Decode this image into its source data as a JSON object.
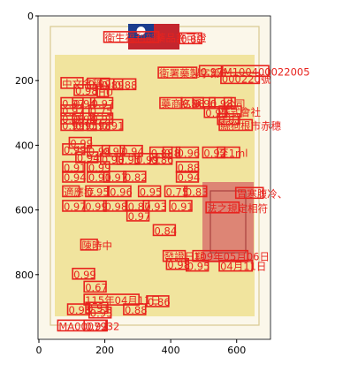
{
  "axes": {
    "x_ticks": [
      "0",
      "200",
      "400",
      "600"
    ],
    "y_ticks": [
      "0",
      "200",
      "400",
      "600",
      "800"
    ],
    "x_range": [
      0,
      700
    ],
    "y_range": [
      1000,
      0
    ]
  },
  "document": {
    "background": "#fbf7ea",
    "certificate_color": "#efe190",
    "flag_blue": "#1b3d8e",
    "flag_red": "#c4262e",
    "stamp_color": "#d9746d"
  },
  "ocr": {
    "color": "#e8231e",
    "labels": [
      {
        "text": "衛生福利部藥品許可證",
        "x": 200,
        "y": 68
      },
      {
        "text": "0.89",
        "x": 430,
        "y": 72
      },
      {
        "text": "0.97",
        "x": 490,
        "y": 173
      },
      {
        "text": "M100400022005",
        "x": 560,
        "y": 173
      },
      {
        "text": "衛署藥製字第0",
        "x": 365,
        "y": 178
      },
      {
        "text": "000220號",
        "x": 555,
        "y": 195
      },
      {
        "text": "中文名稱",
        "x": 70,
        "y": 210
      },
      {
        "text": "0.99",
        "x": 150,
        "y": 212
      },
      {
        "text": "0.89",
        "x": 190,
        "y": 214
      },
      {
        "text": "0.88",
        "x": 230,
        "y": 214
      },
      {
        "text": "0.98",
        "x": 110,
        "y": 232
      },
      {
        "text": "HU",
        "x": 180,
        "y": 236
      },
      {
        "text": "0.97",
        "x": 70,
        "y": 272
      },
      {
        "text": "0.94",
        "x": 105,
        "y": 272
      },
      {
        "text": "0.97",
        "x": 160,
        "y": 272
      },
      {
        "text": "藥商名稱",
        "x": 370,
        "y": 272
      },
      {
        "text": "0.98",
        "x": 435,
        "y": 272
      },
      {
        "text": "0.96",
        "x": 470,
        "y": 272
      },
      {
        "text": "0.98",
        "x": 520,
        "y": 272
      },
      {
        "text": "公司",
        "x": 565,
        "y": 272
      },
      {
        "text": "0.97",
        "x": 70,
        "y": 295
      },
      {
        "text": "0.75",
        "x": 155,
        "y": 295
      },
      {
        "text": "株式會社",
        "x": 550,
        "y": 298
      },
      {
        "text": "0.91",
        "x": 505,
        "y": 300
      },
      {
        "text": "0.96",
        "x": 70,
        "y": 320
      },
      {
        "text": "0.94",
        "x": 105,
        "y": 320
      },
      {
        "text": "0.95",
        "x": 160,
        "y": 320
      },
      {
        "text": "0.81",
        "x": 545,
        "y": 322
      },
      {
        "text": "縣狗根市赤穗",
        "x": 550,
        "y": 340
      },
      {
        "text": "0.99",
        "x": 70,
        "y": 340
      },
      {
        "text": "0.95",
        "x": 110,
        "y": 340
      },
      {
        "text": "0.98",
        "x": 150,
        "y": 340
      },
      {
        "text": "0.91",
        "x": 190,
        "y": 340
      },
      {
        "text": "0.99",
        "x": 95,
        "y": 395
      },
      {
        "text": "0.99",
        "x": 75,
        "y": 415
      },
      {
        "text": "0.98",
        "x": 150,
        "y": 420
      },
      {
        "text": "0.92",
        "x": 195,
        "y": 420
      },
      {
        "text": "0.94",
        "x": 250,
        "y": 420
      },
      {
        "text": "0.88",
        "x": 340,
        "y": 425
      },
      {
        "text": "0.8",
        "x": 380,
        "y": 425
      },
      {
        "text": "0.96",
        "x": 420,
        "y": 425
      },
      {
        "text": "0.92",
        "x": 500,
        "y": 425
      },
      {
        "text": "至1ml",
        "x": 545,
        "y": 425
      },
      {
        "text": "0.94",
        "x": 115,
        "y": 440
      },
      {
        "text": "0.98",
        "x": 190,
        "y": 445
      },
      {
        "text": "0.95",
        "x": 240,
        "y": 445
      },
      {
        "text": "0.99",
        "x": 295,
        "y": 445
      },
      {
        "text": "0.86",
        "x": 340,
        "y": 445
      },
      {
        "text": "0.91",
        "x": 75,
        "y": 470
      },
      {
        "text": "0.99",
        "x": 150,
        "y": 470
      },
      {
        "text": "0.88",
        "x": 420,
        "y": 470
      },
      {
        "text": "0.94",
        "x": 75,
        "y": 500
      },
      {
        "text": "0.91",
        "x": 150,
        "y": 500
      },
      {
        "text": "0.97",
        "x": 200,
        "y": 500
      },
      {
        "text": "0.82",
        "x": 260,
        "y": 500
      },
      {
        "text": "0.94",
        "x": 420,
        "y": 500
      },
      {
        "text": "適應症",
        "x": 75,
        "y": 545
      },
      {
        "text": "0.95",
        "x": 145,
        "y": 545
      },
      {
        "text": "0.96",
        "x": 215,
        "y": 545
      },
      {
        "text": "0.95",
        "x": 305,
        "y": 545
      },
      {
        "text": "0.75",
        "x": 385,
        "y": 545
      },
      {
        "text": "0.83",
        "x": 445,
        "y": 545
      },
      {
        "text": "胃寒腹冷、",
        "x": 600,
        "y": 550
      },
      {
        "text": "0.97",
        "x": 75,
        "y": 590
      },
      {
        "text": "0.99",
        "x": 140,
        "y": 590
      },
      {
        "text": "0.98",
        "x": 200,
        "y": 590
      },
      {
        "text": "0.87",
        "x": 270,
        "y": 590
      },
      {
        "text": "0.93",
        "x": 320,
        "y": 590
      },
      {
        "text": "0.91",
        "x": 400,
        "y": 590
      },
      {
        "text": "法之規定相符",
        "x": 510,
        "y": 595
      },
      {
        "text": "0.97",
        "x": 270,
        "y": 620
      },
      {
        "text": "0.84",
        "x": 350,
        "y": 665
      },
      {
        "text": "陳時中",
        "x": 130,
        "y": 710
      },
      {
        "text": "發證日期",
        "x": 380,
        "y": 745
      },
      {
        "text": "109年05月06日",
        "x": 470,
        "y": 745
      },
      {
        "text": "0.98",
        "x": 390,
        "y": 770
      },
      {
        "text": "0.95",
        "x": 450,
        "y": 775
      },
      {
        "text": "04月11日",
        "x": 550,
        "y": 775
      },
      {
        "text": "0.99",
        "x": 105,
        "y": 800
      },
      {
        "text": "0.67",
        "x": 140,
        "y": 840
      },
      {
        "text": "115年04月11日",
        "x": 140,
        "y": 880
      },
      {
        "text": "0.86",
        "x": 330,
        "y": 885
      },
      {
        "text": "0.91",
        "x": 145,
        "y": 905
      },
      {
        "text": "0.88",
        "x": 260,
        "y": 910
      },
      {
        "text": "0.98",
        "x": 90,
        "y": 910
      },
      {
        "text": "0.93",
        "x": 155,
        "y": 920
      },
      {
        "text": "MA0007932",
        "x": 60,
        "y": 960
      },
      {
        "text": "0.92",
        "x": 140,
        "y": 960
      }
    ]
  }
}
